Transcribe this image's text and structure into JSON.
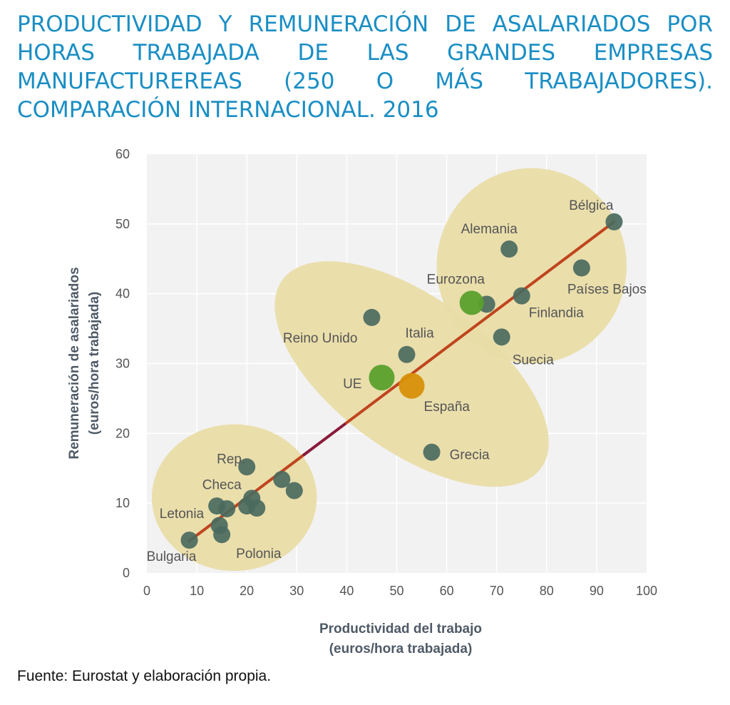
{
  "title": "PRODUCTIVIDAD Y REMUNERACIÓN DE ASALARIADOS POR HORAS TRABAJADA DE LAS GRANDES EMPRESAS MANUFACTUREREAS (250 O MÁS TRABAJADORES). COMPARACIÓN INTERNACIONAL. 2016",
  "source": "Fuente: Eurostat y elaboración propia.",
  "colors": {
    "title": "#1a8ec4",
    "point": "#4a6a5e",
    "eu_point": "#5aa02c",
    "spain_point": "#d8900a",
    "cluster_fill": "#e9dca6",
    "trend_line": "#c0441e",
    "trend_line_mid": "#8a1a3a",
    "plot_bg": "#f2f2f2",
    "grid": "#ffffff"
  },
  "chart_data": {
    "type": "scatter",
    "xlabel": [
      "Productividad del trabajo",
      "(euros/hora trabajada)"
    ],
    "ylabel": [
      "Remuneración de asalariados",
      "(euros/hora trabajada)"
    ],
    "xlim": [
      0,
      100
    ],
    "ylim": [
      0,
      60
    ],
    "xticks": [
      "0",
      "10",
      "20",
      "30",
      "40",
      "50",
      "60",
      "70",
      "80",
      "90",
      "100"
    ],
    "yticks": [
      "0",
      "10",
      "20",
      "30",
      "40",
      "50",
      "60"
    ],
    "grid": true,
    "trend_line": {
      "x": [
        8.5,
        93.5
      ],
      "y": [
        4.6,
        50.3
      ]
    },
    "clusters": [
      {
        "cx": 17.5,
        "cy": 10.8,
        "rx": 16.5,
        "ry": 10.5,
        "rot": 0
      },
      {
        "cx": 53,
        "cy": 28.5,
        "rx": 32,
        "ry": 11,
        "rot": 36
      },
      {
        "cx": 77,
        "cy": 44,
        "rx": 19,
        "ry": 14,
        "rot": 0
      }
    ],
    "points": [
      {
        "x": 93.5,
        "y": 50.3,
        "label": "Bélgica",
        "type": "country"
      },
      {
        "x": 72.5,
        "y": 46.4,
        "label": "Alemania",
        "type": "country"
      },
      {
        "x": 87,
        "y": 43.7,
        "label": "Países Bajos",
        "type": "country"
      },
      {
        "x": 75,
        "y": 39.7,
        "label": "Finlandia",
        "type": "country"
      },
      {
        "x": 68,
        "y": 38.5,
        "label": "",
        "type": "country"
      },
      {
        "x": 71,
        "y": 33.8,
        "label": "Suecia",
        "type": "country"
      },
      {
        "x": 45,
        "y": 36.6,
        "label": "Reino Unido",
        "type": "country"
      },
      {
        "x": 52,
        "y": 31.3,
        "label": "Italia",
        "type": "country"
      },
      {
        "x": 57,
        "y": 17.3,
        "label": "Grecia",
        "type": "country"
      },
      {
        "x": 20,
        "y": 15.2,
        "label": "Rep. Checa",
        "type": "country"
      },
      {
        "x": 27,
        "y": 13.4,
        "label": "",
        "type": "country"
      },
      {
        "x": 29.5,
        "y": 11.8,
        "label": "",
        "type": "country"
      },
      {
        "x": 21,
        "y": 10.7,
        "label": "",
        "type": "country"
      },
      {
        "x": 14,
        "y": 9.6,
        "label": "Letonia",
        "type": "country"
      },
      {
        "x": 16,
        "y": 9.2,
        "label": "",
        "type": "country"
      },
      {
        "x": 20,
        "y": 9.6,
        "label": "",
        "type": "country"
      },
      {
        "x": 22,
        "y": 9.3,
        "label": "",
        "type": "country"
      },
      {
        "x": 14.5,
        "y": 6.8,
        "label": "",
        "type": "country"
      },
      {
        "x": 15,
        "y": 5.5,
        "label": "Polonia",
        "type": "country"
      },
      {
        "x": 8.5,
        "y": 4.7,
        "label": "Bulgaria",
        "type": "country"
      },
      {
        "x": 65,
        "y": 38.7,
        "label": "Eurozona",
        "type": "eurozona"
      },
      {
        "x": 47,
        "y": 28.0,
        "label": "UE",
        "type": "ue"
      },
      {
        "x": 53,
        "y": 26.8,
        "label": "España",
        "type": "espana"
      }
    ]
  }
}
